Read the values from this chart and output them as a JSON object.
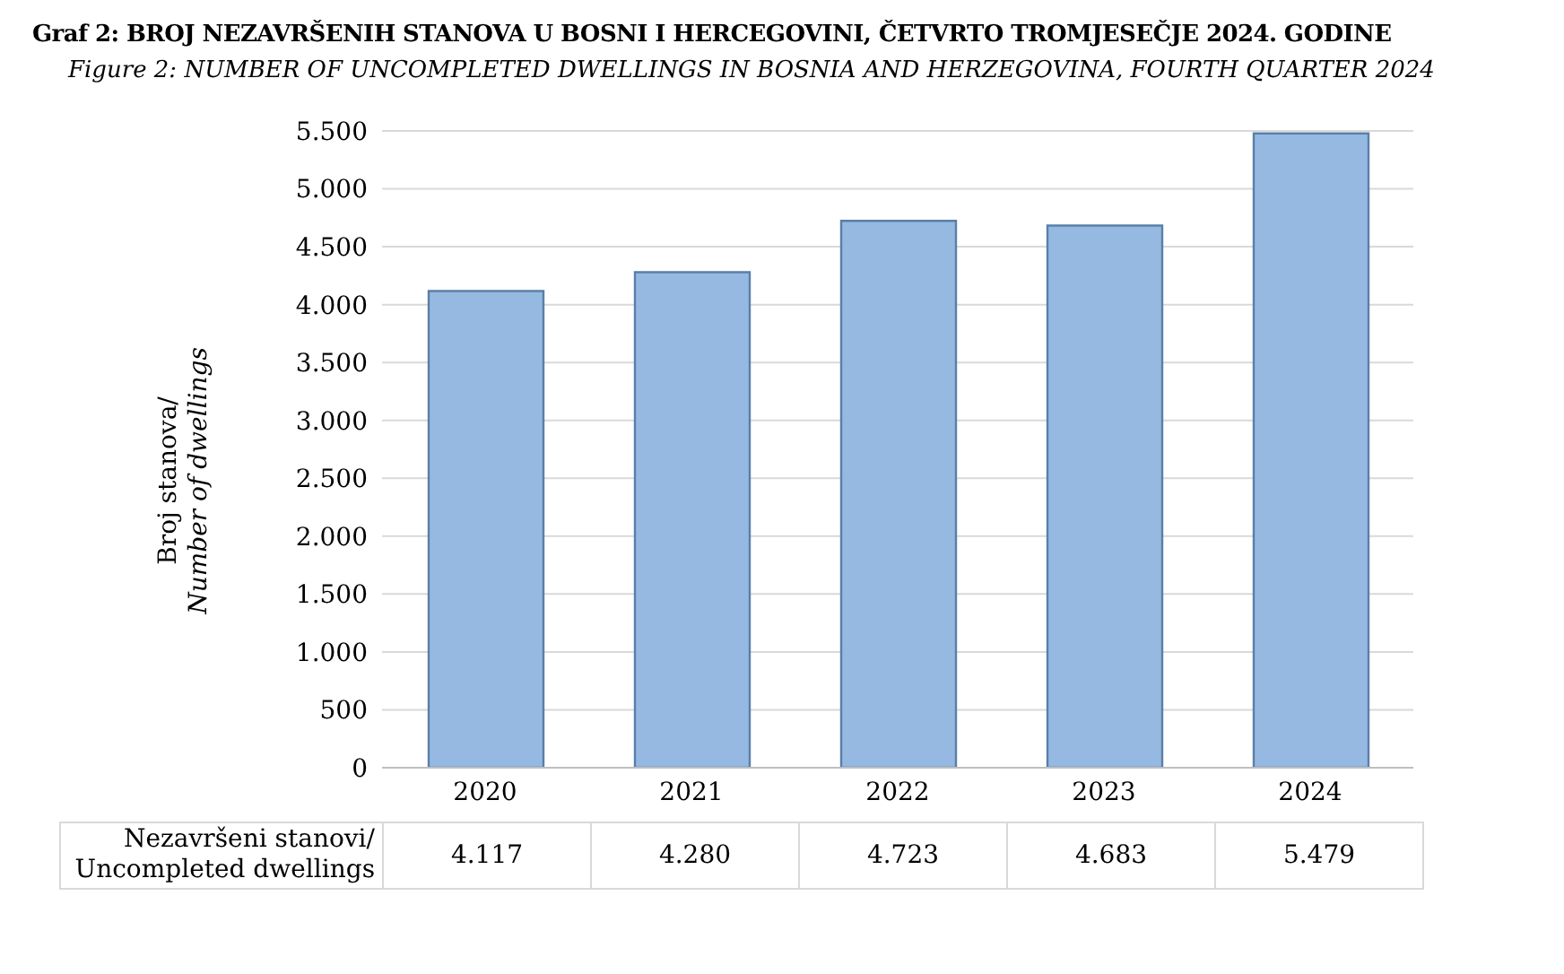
{
  "chart_data": {
    "type": "bar",
    "title": "Graf 2: BROJ NEZAVRŠENIH STANOVA U BOSNI I HERCEGOVINI, ČETVRTO TROMJESEČJE 2024. GODINE",
    "subtitle": "Figure 2:  NUMBER OF UNCOMPLETED DWELLINGS IN BOSNIA AND HERZEGOVINA, FOURTH QUARTER 2024",
    "ylabel": "Broj stanova/\nNumber of dwellings",
    "categories": [
      "2020",
      "2021",
      "2022",
      "2023",
      "2024"
    ],
    "series": [
      {
        "name": "Nezavršeni stanovi/\nUncompleted dwellings",
        "color": "#95b9e0",
        "values": [
          4117,
          4280,
          4723,
          4683,
          5479
        ],
        "value_labels": [
          "4.117",
          "4.280",
          "4.723",
          "4.683",
          "5.479"
        ]
      }
    ],
    "ylim": [
      0,
      5500
    ],
    "yticks": [
      {
        "value": 0,
        "label": "0"
      },
      {
        "value": 500,
        "label": "500"
      },
      {
        "value": 1000,
        "label": "1.000"
      },
      {
        "value": 1500,
        "label": "1.500"
      },
      {
        "value": 2000,
        "label": "2.000"
      },
      {
        "value": 2500,
        "label": "2.500"
      },
      {
        "value": 3000,
        "label": "3.000"
      },
      {
        "value": 3500,
        "label": "3.500"
      },
      {
        "value": 4000,
        "label": "4.000"
      },
      {
        "value": 4500,
        "label": "4.500"
      },
      {
        "value": 5000,
        "label": "5.000"
      },
      {
        "value": 5500,
        "label": "5.500"
      }
    ],
    "grid": "y"
  }
}
